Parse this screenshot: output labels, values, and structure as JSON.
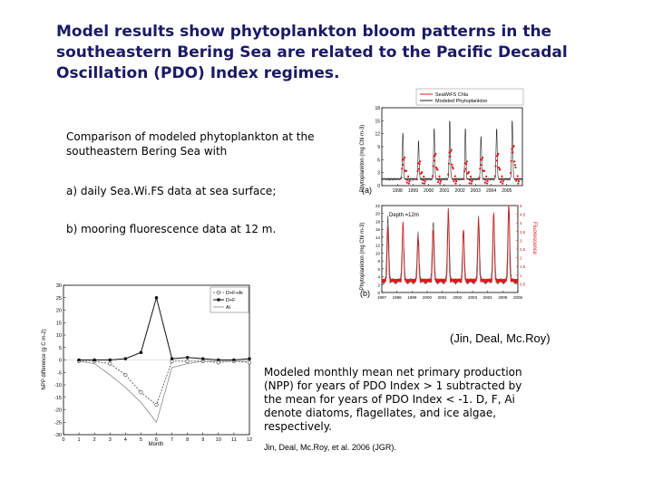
{
  "title": {
    "lines": [
      "Model results show phytoplankton bloom patterns in the",
      "southeastern Bering Sea are related to the Pacific Decadal",
      "Oscillation (PDO) Index regimes."
    ]
  },
  "comparison": {
    "lines": [
      "Comparison of modeled phytoplankton at the",
      "southeastern Bering Sea with"
    ],
    "item_a": "a) daily Sea.Wi.FS data at sea surface;",
    "item_b": "b) mooring fluorescence data at 12 m."
  },
  "attribution": "(Jin, Deal, Mc.Roy)",
  "npp_caption": {
    "lines": [
      "Modeled monthly mean net primary production",
      "(NPP) for years of PDO Index > 1 subtracted by",
      "the mean for years of PDO Index < -1. D, F, Ai",
      "denote diatoms, flagellates, and ice algae,",
      "respectively."
    ]
  },
  "citation": "Jin, Deal, Mc.Roy, et al. 2006 (JGR).",
  "colors": {
    "title": "#1a1a66",
    "seawifs": "#e01818",
    "model": "#222222",
    "mooring": "#e01818"
  },
  "chart_data": [
    {
      "type": "line",
      "panel_label": "(a)",
      "ylabel": "Phytoplankton (mg Chl m-3)",
      "legend": [
        "SeaWiFS Chla",
        "Modeled Phytoplankton"
      ],
      "legend_placement": "top-right",
      "ylim": [
        0,
        18
      ],
      "yticks": [
        "0",
        "3",
        "6",
        "9",
        "12",
        "15",
        "18"
      ],
      "xlim": [
        1997,
        2006
      ],
      "xticks": [
        "1998",
        "1999",
        "2000",
        "2001",
        "2002",
        "2003",
        "2004",
        "2005"
      ],
      "series": [
        {
          "name": "Modeled Phytoplankton",
          "values": [
            [
              1998.35,
              11
            ],
            [
              1999.35,
              9
            ],
            [
              2000.35,
              12
            ],
            [
              2001.35,
              14
            ],
            [
              2002.35,
              12
            ],
            [
              2003.35,
              10
            ],
            [
              2004.35,
              12
            ],
            [
              2005.35,
              14
            ]
          ]
        },
        {
          "name": "SeaWiFS Chla",
          "values": [
            [
              1998.4,
              5
            ],
            [
              1999.4,
              4
            ],
            [
              2000.4,
              6
            ],
            [
              2001.4,
              7
            ],
            [
              2002.4,
              4
            ],
            [
              2003.4,
              5
            ],
            [
              2004.4,
              6
            ],
            [
              2005.4,
              8
            ]
          ]
        }
      ]
    },
    {
      "type": "line",
      "panel_label": "(b)",
      "annotation": "Depth =12m",
      "ylabel": "Phytoplankton (mg Chl m-3)",
      "y2label": "Fluorescence",
      "ylim": [
        0,
        22
      ],
      "yticks": [
        "0",
        "2",
        "4",
        "6",
        "8",
        "10",
        "12",
        "14",
        "16",
        "18",
        "20",
        "22"
      ],
      "y2lim": [
        0,
        5
      ],
      "y2ticks": [
        "0.5",
        "1",
        "1.5",
        "2",
        "2.5",
        "3",
        "3.5",
        "4",
        "4.5",
        "5"
      ],
      "xlim": [
        1997,
        2006
      ],
      "xticks": [
        "1997",
        "1998",
        "1999",
        "2000",
        "2001",
        "2002",
        "2003",
        "2004",
        "2005",
        "2006"
      ],
      "series": [
        {
          "name": "Model",
          "values": [
            [
              1997.4,
              16
            ],
            [
              1998.4,
              14
            ],
            [
              1999.4,
              12
            ],
            [
              2000.4,
              15
            ],
            [
              2001.4,
              18
            ],
            [
              2002.4,
              13
            ],
            [
              2003.4,
              16
            ],
            [
              2004.4,
              17
            ],
            [
              2005.4,
              20
            ]
          ]
        },
        {
          "name": "Fluorescence",
          "values": [
            [
              1997.4,
              3
            ],
            [
              1998.4,
              3.5
            ],
            [
              1999.4,
              2.5
            ],
            [
              2000.4,
              3
            ],
            [
              2001.4,
              4
            ],
            [
              2002.4,
              3
            ],
            [
              2003.4,
              3.5
            ],
            [
              2004.4,
              4
            ],
            [
              2005.4,
              4.5
            ]
          ]
        }
      ]
    },
    {
      "type": "line",
      "ylabel": "NPP difference (g C m-2)",
      "xlabel": "Month",
      "ylim": [
        -30,
        30
      ],
      "yticks": [
        "-30",
        "-25",
        "-20",
        "-15",
        "-10",
        "-5",
        "0",
        "5",
        "10",
        "15",
        "20",
        "25",
        "30"
      ],
      "xlim": [
        0,
        12
      ],
      "xticks": [
        "0",
        "1",
        "2",
        "3",
        "4",
        "5",
        "6",
        "7",
        "8",
        "9",
        "10",
        "11",
        "12"
      ],
      "legend": [
        "D+F+Ai",
        "D+F",
        "Ai"
      ],
      "legend_placement": "top-right",
      "x": [
        1,
        2,
        3,
        4,
        5,
        6,
        7,
        8,
        9,
        10,
        11,
        12
      ],
      "series": [
        {
          "name": "D+F+Ai",
          "style": "dashed-circles",
          "values": [
            -0.5,
            -0.5,
            -1.5,
            -6,
            -13,
            -18,
            -0.5,
            -0.5,
            -0.5,
            -1,
            -0.5,
            -1
          ]
        },
        {
          "name": "D+F",
          "style": "solid-dots",
          "values": [
            0,
            0,
            0,
            0.5,
            3,
            25,
            0.5,
            1,
            0.5,
            0,
            0,
            0.5
          ]
        },
        {
          "name": "Ai",
          "style": "solid-thin",
          "values": [
            -0.5,
            -1.5,
            -6,
            -11,
            -17,
            -25,
            -3,
            -1.5,
            -0.5,
            -0.5,
            -0.5,
            -0.5
          ]
        }
      ]
    }
  ]
}
